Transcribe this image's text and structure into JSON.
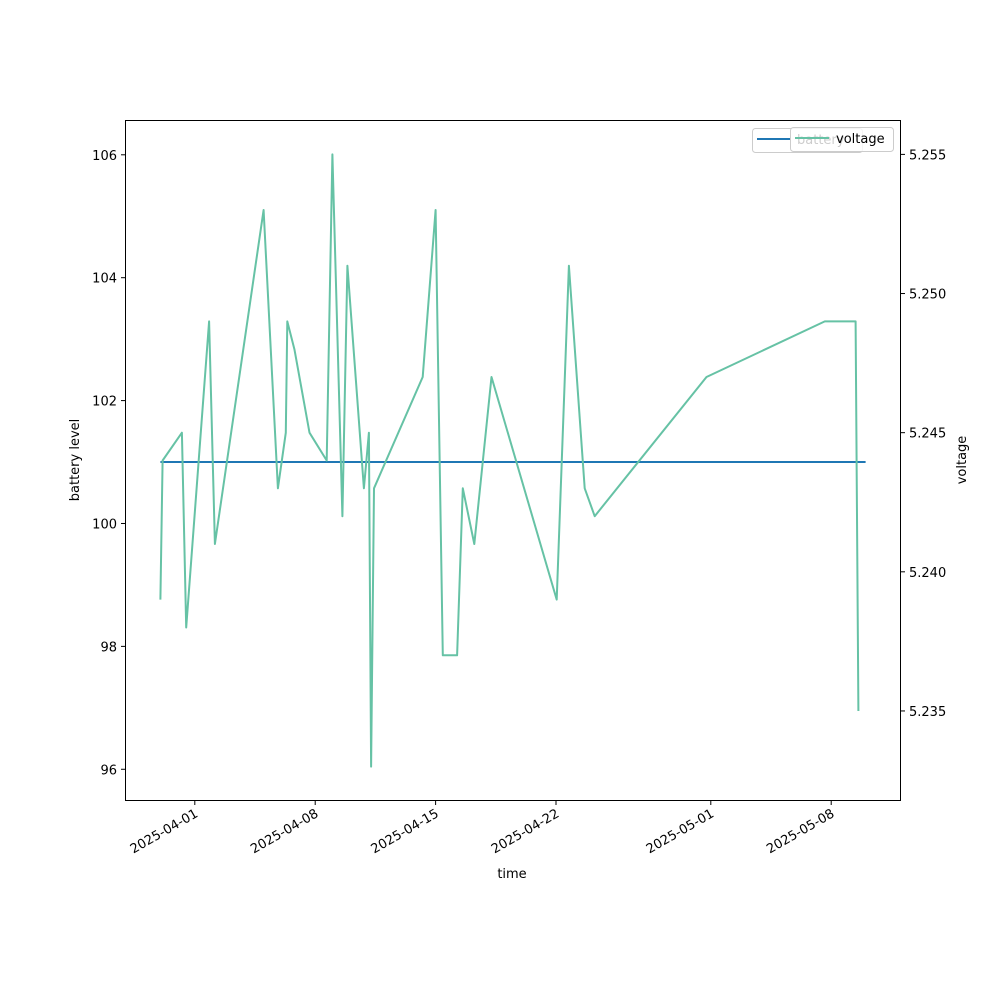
{
  "chart_data": {
    "type": "line",
    "xlabel": "time",
    "ylabel_left": "battery level",
    "ylabel_right": "voltage",
    "x_ticks": [
      "2025-04-01",
      "2025-04-08",
      "2025-04-15",
      "2025-04-22",
      "2025-05-01",
      "2025-05-08"
    ],
    "x_range": [
      "2025-03-28T00:00",
      "2025-05-12T00:00"
    ],
    "ylim_left": [
      95.5,
      106.55
    ],
    "ylim_right": [
      5.2318,
      5.2562
    ],
    "yticks_left": [
      96,
      98,
      100,
      102,
      104,
      106
    ],
    "yticks_right": [
      5.235,
      5.24,
      5.245,
      5.25,
      5.255
    ],
    "legend_placement": "top-right",
    "series": [
      {
        "name": "battery",
        "axis": "left",
        "color": "#1f77b4",
        "points": [
          [
            "2025-03-30T00:00",
            101
          ],
          [
            "2025-05-10T00:00",
            101
          ]
        ]
      },
      {
        "name": "voltage",
        "axis": "right",
        "color": "#66c2a5",
        "points": [
          [
            "2025-03-30T00:00",
            5.239
          ],
          [
            "2025-03-30T03:00",
            5.244
          ],
          [
            "2025-03-31T06:00",
            5.245
          ],
          [
            "2025-03-31T12:00",
            5.238
          ],
          [
            "2025-04-01T20:00",
            5.249
          ],
          [
            "2025-04-02T04:00",
            5.241
          ],
          [
            "2025-04-05T00:00",
            5.253
          ],
          [
            "2025-04-05T20:00",
            5.243
          ],
          [
            "2025-04-06T07:00",
            5.245
          ],
          [
            "2025-04-06T09:00",
            5.249
          ],
          [
            "2025-04-06T19:00",
            5.248
          ],
          [
            "2025-04-07T16:00",
            5.245
          ],
          [
            "2025-04-08T16:00",
            5.244
          ],
          [
            "2025-04-09T00:00",
            5.255
          ],
          [
            "2025-04-09T14:00",
            5.242
          ],
          [
            "2025-04-09T21:00",
            5.251
          ],
          [
            "2025-04-10T20:00",
            5.243
          ],
          [
            "2025-04-11T03:00",
            5.245
          ],
          [
            "2025-04-11T06:00",
            5.233
          ],
          [
            "2025-04-11T10:00",
            5.243
          ],
          [
            "2025-04-14T06:00",
            5.247
          ],
          [
            "2025-04-15T00:00",
            5.253
          ],
          [
            "2025-04-15T10:00",
            5.237
          ],
          [
            "2025-04-16T06:00",
            5.237
          ],
          [
            "2025-04-16T14:00",
            5.243
          ],
          [
            "2025-04-17T06:00",
            5.241
          ],
          [
            "2025-04-18T06:00",
            5.247
          ],
          [
            "2025-04-22T01:00",
            5.239
          ],
          [
            "2025-04-22T18:00",
            5.251
          ],
          [
            "2025-04-23T16:00",
            5.243
          ],
          [
            "2025-04-24T06:00",
            5.242
          ],
          [
            "2025-04-30T18:00",
            5.247
          ],
          [
            "2025-05-07T15:00",
            5.249
          ],
          [
            "2025-05-09T10:00",
            5.249
          ],
          [
            "2025-05-09T14:00",
            5.235
          ]
        ]
      }
    ]
  }
}
